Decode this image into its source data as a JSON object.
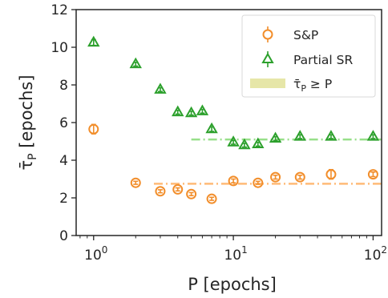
{
  "chart_data": {
    "type": "scatter",
    "xlabel": "P [epochs]",
    "ylabel": "τ̄_P [epochs]",
    "x_scale": "log",
    "xlim": [
      0.75,
      115
    ],
    "ylim": [
      0,
      12
    ],
    "x_ticks": [
      {
        "value": 1,
        "base": "10",
        "exp": "0"
      },
      {
        "value": 10,
        "base": "10",
        "exp": "1"
      },
      {
        "value": 100,
        "base": "10",
        "exp": "2"
      }
    ],
    "y_ticks": [
      0,
      2,
      4,
      6,
      8,
      10,
      12
    ],
    "grid": false,
    "legend_position": "top-right",
    "legend": [
      {
        "label": "S&P",
        "marker": "circle"
      },
      {
        "label": "Partial SR",
        "marker": "triangle"
      },
      {
        "label": "τ̄_P ≥ P",
        "marker": "band"
      }
    ],
    "series": [
      {
        "name": "S&P",
        "marker": "circle",
        "color": "#f28e2b",
        "x": [
          1,
          2,
          3,
          4,
          5,
          7,
          10,
          15,
          20,
          30,
          50,
          100
        ],
        "y": [
          5.65,
          2.8,
          2.35,
          2.45,
          2.2,
          1.95,
          2.9,
          2.8,
          3.1,
          3.1,
          3.25,
          3.25
        ],
        "err": [
          0.25,
          0.08,
          0.08,
          0.08,
          0.08,
          0.08,
          0.1,
          0.08,
          0.1,
          0.1,
          0.25,
          0.12
        ]
      },
      {
        "name": "Partial SR",
        "marker": "triangle",
        "color": "#2ca02c",
        "x": [
          1,
          2,
          3,
          4,
          5,
          6,
          7,
          10,
          12,
          15,
          20,
          30,
          50,
          100
        ],
        "y": [
          10.25,
          9.1,
          7.75,
          6.55,
          6.5,
          6.6,
          5.65,
          4.95,
          4.8,
          4.85,
          5.15,
          5.25,
          5.25,
          5.25
        ],
        "err": [
          0.15,
          0.1,
          0.1,
          0.1,
          0.1,
          0.1,
          0.12,
          0.1,
          0.1,
          0.1,
          0.1,
          0.1,
          0.1,
          0.1
        ]
      }
    ],
    "reference_lines": [
      {
        "series": "S&P",
        "color": "#ffbb78",
        "x_start": 2.7,
        "x_end": 115,
        "y": 2.75
      },
      {
        "series": "Partial SR",
        "color": "#98df8a",
        "x_start": 5.0,
        "x_end": 115,
        "y": 5.1
      }
    ]
  }
}
